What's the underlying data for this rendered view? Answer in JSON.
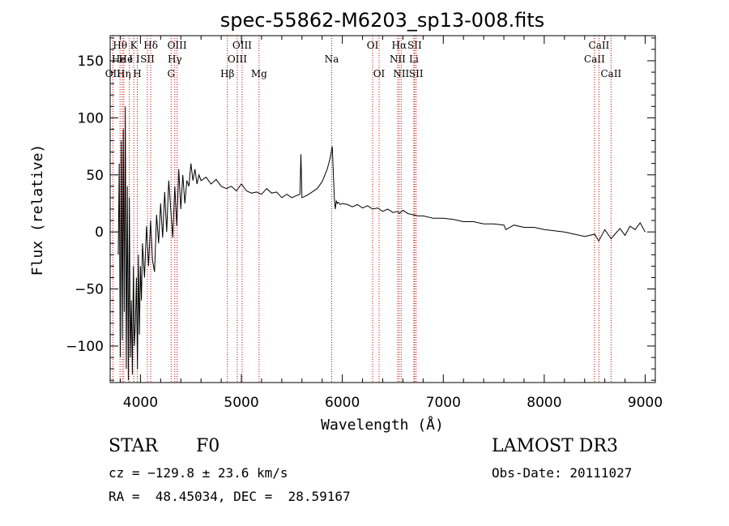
{
  "chart_data": {
    "type": "line",
    "title": "spec-55862-M6203_sp13-008.fits",
    "xlabel": "Wavelength (Å)",
    "ylabel": "Flux (relative)",
    "xlim": [
      3700,
      9100
    ],
    "ylim": [
      -132,
      172
    ],
    "xticks": [
      4000,
      5000,
      6000,
      7000,
      8000,
      9000
    ],
    "yticks": [
      -100,
      -50,
      0,
      50,
      100,
      150
    ],
    "series": [
      {
        "name": "flux",
        "x": [
          3780,
          3790,
          3800,
          3810,
          3820,
          3830,
          3840,
          3850,
          3860,
          3870,
          3880,
          3890,
          3900,
          3910,
          3920,
          3930,
          3940,
          3950,
          3960,
          3970,
          3980,
          3990,
          4000,
          4010,
          4020,
          4040,
          4060,
          4080,
          4100,
          4120,
          4140,
          4160,
          4180,
          4200,
          4220,
          4240,
          4260,
          4280,
          4300,
          4320,
          4340,
          4360,
          4380,
          4400,
          4420,
          4440,
          4460,
          4480,
          4500,
          4520,
          4540,
          4560,
          4580,
          4600,
          4650,
          4700,
          4750,
          4800,
          4850,
          4900,
          4950,
          5000,
          5050,
          5100,
          5150,
          5200,
          5250,
          5300,
          5350,
          5400,
          5450,
          5500,
          5550,
          5580,
          5590,
          5600,
          5650,
          5700,
          5750,
          5800,
          5850,
          5880,
          5900,
          5920,
          5930,
          5940,
          5950,
          5960,
          5980,
          6000,
          6050,
          6100,
          6150,
          6200,
          6250,
          6300,
          6350,
          6400,
          6450,
          6500,
          6550,
          6563,
          6600,
          6650,
          6700,
          6750,
          6800,
          6900,
          7000,
          7100,
          7200,
          7300,
          7400,
          7500,
          7600,
          7620,
          7700,
          7800,
          7900,
          8000,
          8100,
          8200,
          8300,
          8400,
          8500,
          8540,
          8600,
          8662,
          8700,
          8750,
          8800,
          8850,
          8900,
          8950,
          9000
        ],
        "y": [
          -20,
          60,
          -110,
          80,
          -95,
          90,
          -70,
          110,
          -120,
          40,
          -130,
          30,
          -110,
          -60,
          -125,
          -30,
          -100,
          -80,
          -40,
          -120,
          -20,
          -90,
          -30,
          -60,
          -10,
          -40,
          5,
          -30,
          10,
          -25,
          -35,
          15,
          -10,
          25,
          -5,
          35,
          0,
          45,
          20,
          -5,
          40,
          5,
          55,
          20,
          50,
          25,
          45,
          40,
          60,
          45,
          55,
          42,
          50,
          45,
          48,
          42,
          46,
          40,
          38,
          40,
          36,
          42,
          36,
          34,
          35,
          33,
          38,
          34,
          35,
          30,
          33,
          30,
          32,
          33,
          68,
          30,
          32,
          35,
          38,
          44,
          55,
          65,
          75,
          30,
          20,
          27,
          25,
          26,
          24,
          25,
          24,
          22,
          24,
          21,
          23,
          20,
          21,
          18,
          20,
          17,
          18,
          16,
          19,
          16,
          15,
          14,
          14,
          12,
          12,
          11,
          9,
          9,
          7,
          7,
          6,
          2,
          6,
          4,
          4,
          2,
          1,
          0,
          -2,
          -4,
          -2,
          -8,
          2,
          -6,
          -2,
          3,
          -3,
          5,
          2,
          8,
          0
        ]
      }
    ],
    "lines": [
      {
        "wavelength": 3727,
        "label": "OII",
        "row": 3
      },
      {
        "wavelength": 3798,
        "label": "Hθ",
        "row": 1
      },
      {
        "wavelength": 3820,
        "label": "He I",
        "row": 2
      },
      {
        "wavelength": 3835,
        "label": "Hη",
        "row": 3
      },
      {
        "wavelength": 3889,
        "label": "He I",
        "row": 2
      },
      {
        "wavelength": 3934,
        "label": "K",
        "row": 1
      },
      {
        "wavelength": 3969,
        "label": "H",
        "row": 3
      },
      {
        "wavelength": 4069,
        "label": "SII",
        "row": 2
      },
      {
        "wavelength": 4102,
        "label": "Hδ",
        "row": 1
      },
      {
        "wavelength": 4304,
        "label": "G",
        "row": 3
      },
      {
        "wavelength": 4340,
        "label": "Hγ",
        "row": 2
      },
      {
        "wavelength": 4363,
        "label": "OIII",
        "row": 1
      },
      {
        "wavelength": 4861,
        "label": "Hβ",
        "row": 3
      },
      {
        "wavelength": 4959,
        "label": "OIII",
        "row": 2
      },
      {
        "wavelength": 5007,
        "label": "OIII",
        "row": 1
      },
      {
        "wavelength": 5175,
        "label": "Mg",
        "row": 3
      },
      {
        "wavelength": 5894,
        "label": "Na",
        "row": 2
      },
      {
        "wavelength": 6300,
        "label": "OI",
        "row": 1
      },
      {
        "wavelength": 6364,
        "label": "OI",
        "row": 3
      },
      {
        "wavelength": 6548,
        "label": "NII",
        "row": 2
      },
      {
        "wavelength": 6563,
        "label": "Hα",
        "row": 1
      },
      {
        "wavelength": 6583,
        "label": "NII",
        "row": 3
      },
      {
        "wavelength": 6708,
        "label": "Li",
        "row": 2
      },
      {
        "wavelength": 6716,
        "label": "SII",
        "row": 1
      },
      {
        "wavelength": 6731,
        "label": "SII",
        "row": 3
      },
      {
        "wavelength": 8498,
        "label": "CaII",
        "row": 2
      },
      {
        "wavelength": 8542,
        "label": "CaII",
        "row": 1
      },
      {
        "wavelength": 8662,
        "label": "CaII",
        "row": 3
      }
    ],
    "line_color": "#cc0000"
  },
  "info": {
    "class": "STAR",
    "subclass": "F0",
    "survey": "LAMOST DR3",
    "cz": "cz = −129.8 ± 23.6 km/s",
    "obs_date": "Obs-Date: 20111027",
    "radec": "RA =  48.45034, DEC =  28.59167"
  }
}
